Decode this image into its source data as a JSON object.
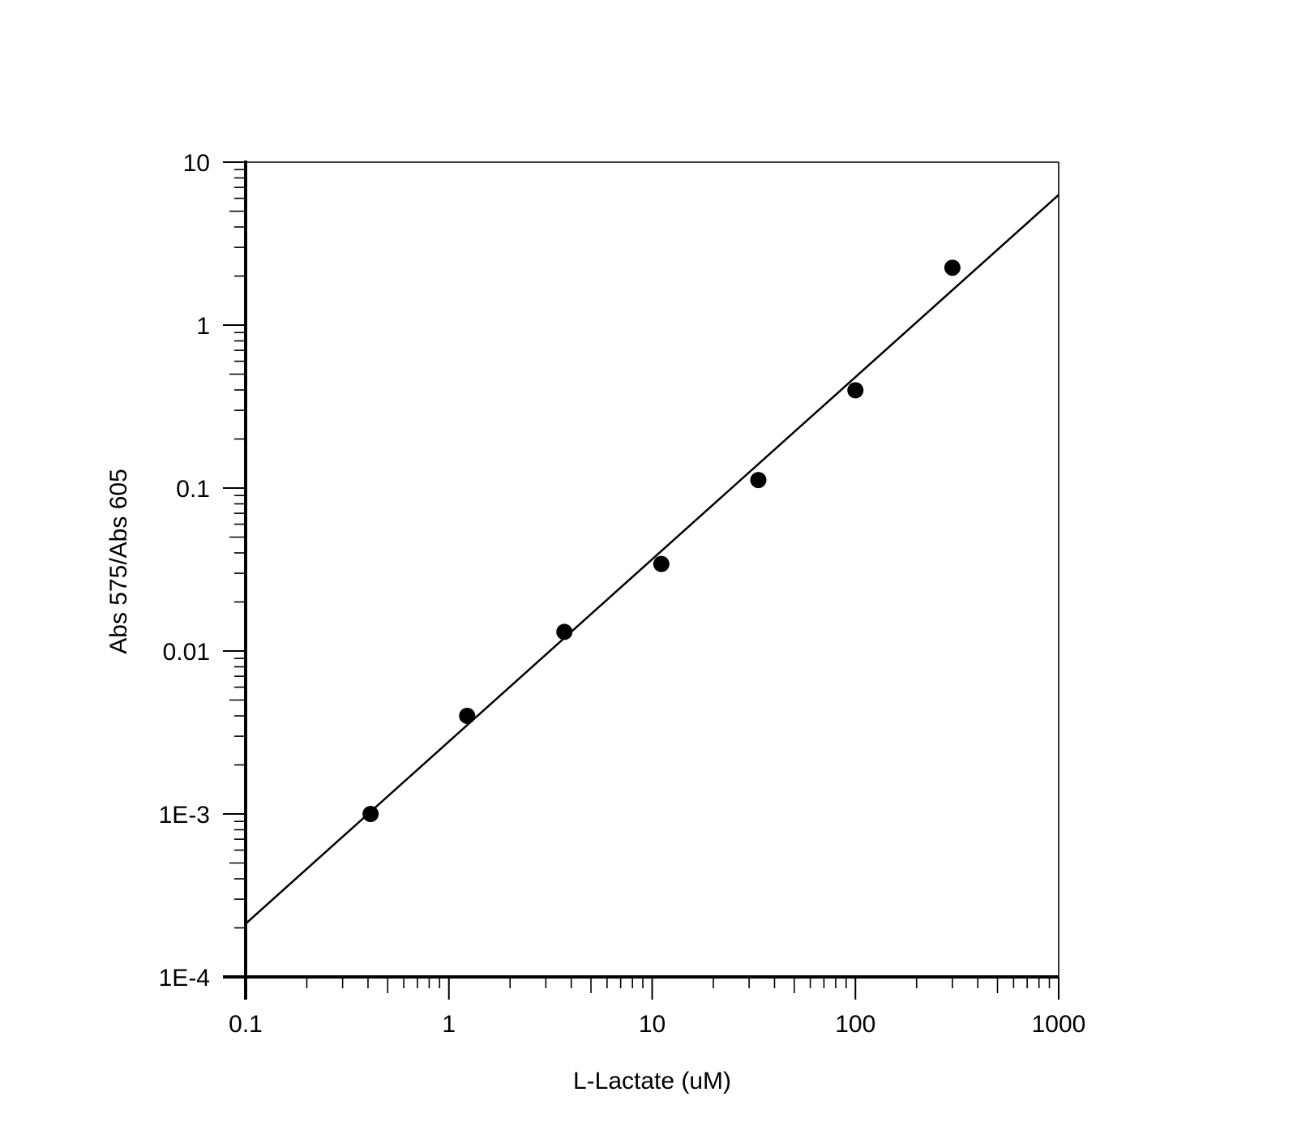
{
  "colors": {
    "background": "#ffffff",
    "ink": "#000000"
  },
  "chart_data": {
    "type": "scatter",
    "title": "",
    "xlabel": "L-Lactate (uM)",
    "ylabel": "Abs 575/Abs 605",
    "x_scale": "log",
    "y_scale": "log",
    "xlim": [
      0.1,
      1000
    ],
    "ylim": [
      0.0001,
      10
    ],
    "x_tick_values": [
      0.1,
      1,
      10,
      100,
      1000
    ],
    "x_tick_labels": [
      "0.1",
      "1",
      "10",
      "100",
      "1000"
    ],
    "y_tick_values": [
      0.0001,
      0.001,
      0.01,
      0.1,
      1,
      10
    ],
    "y_tick_labels": [
      "1E-4",
      "1E-3",
      "0.01",
      "0.1",
      "1",
      "10"
    ],
    "grid": false,
    "legend": "none",
    "series": [
      {
        "marker": "filled-circle",
        "x": [
          0.412,
          1.23,
          3.7,
          11.1,
          33.3,
          100,
          300
        ],
        "y": [
          0.001,
          0.004,
          0.0131,
          0.0342,
          0.112,
          0.398,
          2.25
        ]
      }
    ],
    "fit_line": {
      "x": [
        0.1,
        1000
      ],
      "y": [
        0.000212,
        6.3
      ]
    }
  }
}
